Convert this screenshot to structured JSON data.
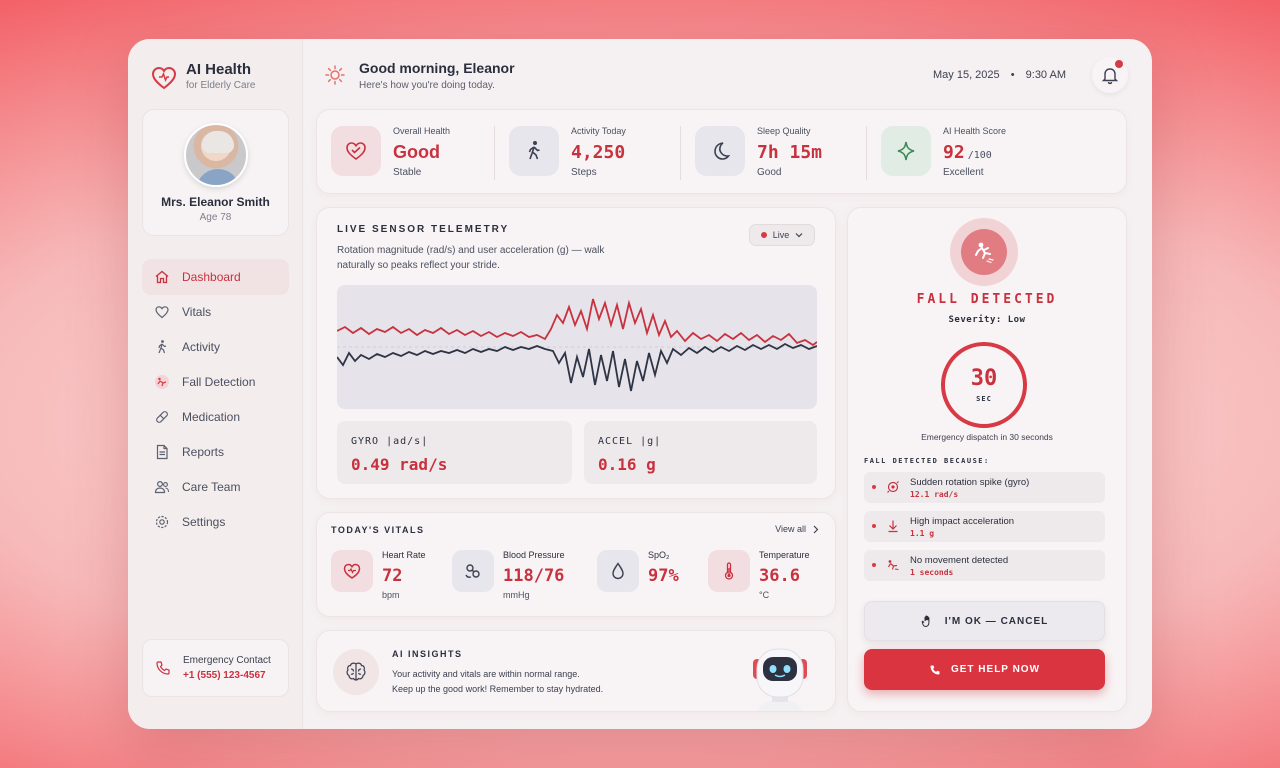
{
  "brand": {
    "title": "AI Health",
    "subtitle": "for Elderly Care"
  },
  "profile": {
    "name": "Mrs. Eleanor Smith",
    "age": "Age 78"
  },
  "nav": [
    {
      "label": "Dashboard",
      "icon": "home-icon",
      "active": true
    },
    {
      "label": "Vitals",
      "icon": "heart-icon"
    },
    {
      "label": "Activity",
      "icon": "walking-icon"
    },
    {
      "label": "Fall Detection",
      "icon": "fall-icon"
    },
    {
      "label": "Medication",
      "icon": "pill-icon"
    },
    {
      "label": "Reports",
      "icon": "document-icon"
    },
    {
      "label": "Care Team",
      "icon": "users-icon"
    },
    {
      "label": "Settings",
      "icon": "gear-icon"
    }
  ],
  "emergency": {
    "label": "Emergency Contact",
    "phone": "+1 (555) 123-4567"
  },
  "header": {
    "greeting": "Good morning, Eleanor",
    "subtitle": "Here's how you're doing today.",
    "date": "May 15, 2025",
    "time": "9:30 AM"
  },
  "summary": [
    {
      "label": "Overall Health",
      "value": "Good",
      "unit": "",
      "sub": "Stable",
      "icon": "heart-icon"
    },
    {
      "label": "Activity Today",
      "value": "4,250",
      "unit": "",
      "sub": "Steps",
      "icon": "walking-icon"
    },
    {
      "label": "Sleep Quality",
      "value": "7h 15m",
      "unit": "",
      "sub": "Good",
      "icon": "moon-icon"
    },
    {
      "label": "AI Health Score",
      "value": "92",
      "unit": "/100",
      "sub": "Excellent",
      "icon": "sparkle-icon"
    }
  ],
  "telemetry": {
    "title": "LIVE SENSOR TELEMETRY",
    "description": "Rotation magnitude (rad/s) and user acceleration (g) — walk naturally so peaks reflect your stride.",
    "status": "Live",
    "gyro_label": "GYRO |ad/s|",
    "gyro_value": "0.49 rad/s",
    "accel_label": "ACCEL |g|",
    "accel_value": "0.16 g"
  },
  "vitals": {
    "title": "TODAY'S VITALS",
    "view_all": "View all",
    "items": [
      {
        "label": "Heart Rate",
        "value": "72",
        "unit": "bpm",
        "icon": "heart-icon"
      },
      {
        "label": "Blood Pressure",
        "value": "118/76",
        "unit": "mmHg",
        "icon": "blood-pressure-icon"
      },
      {
        "label": "SpO₂",
        "value": "97%",
        "unit": "",
        "icon": "droplet-icon"
      },
      {
        "label": "Temperature",
        "value": "36.6",
        "unit": "°C",
        "icon": "thermometer-icon"
      }
    ]
  },
  "insights": {
    "title": "AI INSIGHTS",
    "line1": "Your activity and vitals are within normal range.",
    "line2": "Keep up the good work! Remember to stay hydrated."
  },
  "fall": {
    "title": "FALL DETECTED",
    "severity": "Severity: Low",
    "countdown": "30",
    "countdown_unit": "SEC",
    "dispatch": "Emergency dispatch in 30 seconds",
    "because_label": "FALL DETECTED BECAUSE:",
    "reasons": [
      {
        "text": "Sudden rotation spike (gyro)",
        "value": "12.1 rad/s",
        "icon": "rotation-icon"
      },
      {
        "text": "High impact acceleration",
        "value": "1.1 g",
        "icon": "arrow-down-icon"
      },
      {
        "text": "No movement detected",
        "value": "1 seconds",
        "icon": "fall-icon"
      }
    ],
    "ok_button": "I'M OK — CANCEL",
    "help_button": "GET HELP NOW"
  },
  "colors": {
    "accent": "#c8323f",
    "button_red": "#d93440",
    "panel": "#f8f4f5"
  }
}
